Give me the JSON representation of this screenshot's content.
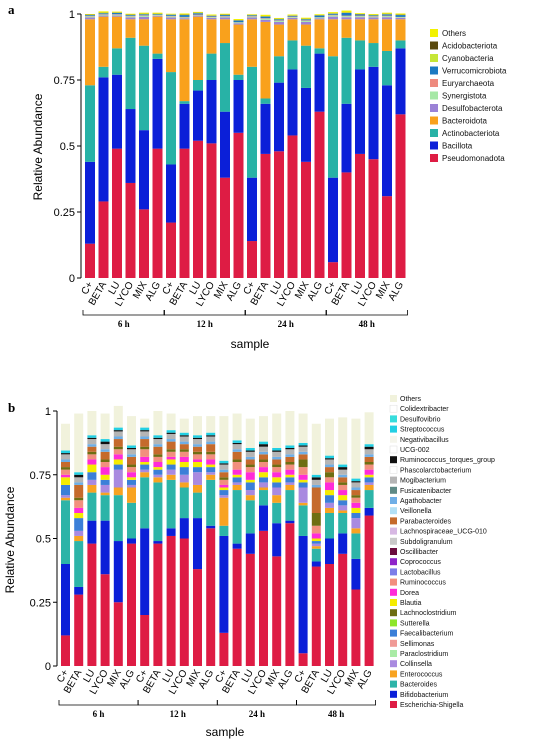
{
  "colors": {
    "Others": "#f2f200",
    "Acidobacteriota": "#5a4a0e",
    "Cyanobacteria": "#c6e636",
    "Verrucomicrobiota": "#1b79c2",
    "Euryarchaeota": "#ee8a7e",
    "Synergistota": "#a6e8a6",
    "Desulfobacterota": "#9b82d6",
    "Bacteroidota": "#f9a11c",
    "Actinobacteriota": "#28b2a6",
    "Bacillota": "#0b1fd8",
    "Pseudomonadota": "#de1c44"
  },
  "chart_data": [
    {
      "type": "bar",
      "panel": "a",
      "xlabel": "sample",
      "ylabel": "Relative Abundance",
      "ylim": [
        0,
        1
      ],
      "yticks": [
        "0",
        "0.25",
        "0.5",
        "0.75",
        "1"
      ],
      "groups": [
        "6 h",
        "12 h",
        "24 h",
        "48 h"
      ],
      "categories": [
        "C+",
        "BETA",
        "LU",
        "LYCO",
        "MIX",
        "ALG",
        "C+",
        "BETA",
        "LU",
        "LYCO",
        "MIX",
        "ALG",
        "C+",
        "BETA",
        "LU",
        "LYCO",
        "MIX",
        "ALG",
        "C+",
        "BETA",
        "LU",
        "LYCO",
        "MIX",
        "ALG"
      ],
      "legend": [
        "Others",
        "Acidobacteriota",
        "Cyanobacteria",
        "Verrucomicrobiota",
        "Euryarchaeota",
        "Synergistota",
        "Desulfobacterota",
        "Bacteroidota",
        "Actinobacteriota",
        "Bacillota",
        "Pseudomonadota"
      ],
      "series": [
        {
          "name": "Pseudomonadota",
          "values": [
            0.13,
            0.29,
            0.49,
            0.36,
            0.26,
            0.49,
            0.21,
            0.49,
            0.52,
            0.51,
            0.38,
            0.55,
            0.14,
            0.47,
            0.48,
            0.54,
            0.44,
            0.63,
            0.06,
            0.4,
            0.47,
            0.45,
            0.31,
            0.62
          ]
        },
        {
          "name": "Bacillota",
          "values": [
            0.31,
            0.47,
            0.28,
            0.28,
            0.3,
            0.34,
            0.22,
            0.17,
            0.19,
            0.24,
            0.25,
            0.2,
            0.24,
            0.19,
            0.26,
            0.25,
            0.28,
            0.22,
            0.32,
            0.26,
            0.32,
            0.35,
            0.42,
            0.25
          ]
        },
        {
          "name": "Actinobacteriota",
          "values": [
            0.29,
            0.04,
            0.1,
            0.27,
            0.32,
            0.02,
            0.35,
            0.01,
            0.04,
            0.1,
            0.26,
            0.02,
            0.42,
            0.02,
            0.1,
            0.11,
            0.16,
            0.02,
            0.46,
            0.25,
            0.11,
            0.09,
            0.13,
            0.03
          ]
        },
        {
          "name": "Bacteroidota",
          "values": [
            0.25,
            0.19,
            0.12,
            0.07,
            0.1,
            0.14,
            0.2,
            0.31,
            0.24,
            0.13,
            0.09,
            0.19,
            0.18,
            0.29,
            0.12,
            0.08,
            0.08,
            0.11,
            0.14,
            0.07,
            0.08,
            0.09,
            0.12,
            0.08
          ]
        },
        {
          "name": "Desulfobacterota",
          "values": [
            0.007,
            0.004,
            0.004,
            0.007,
            0.009,
            0.003,
            0.007,
            0.004,
            0.004,
            0.005,
            0.007,
            0.005,
            0.007,
            0.008,
            0.01,
            0.005,
            0.01,
            0.004,
            0.01,
            0.008,
            0.008,
            0.007,
            0.008,
            0.005
          ]
        },
        {
          "name": "Synergistota",
          "values": [
            0.004,
            0.003,
            0.003,
            0.004,
            0.004,
            0.002,
            0.004,
            0.003,
            0.002,
            0.003,
            0.003,
            0.003,
            0.003,
            0.004,
            0.004,
            0.003,
            0.004,
            0.003,
            0.005,
            0.004,
            0.004,
            0.003,
            0.004,
            0.003
          ]
        },
        {
          "name": "Euryarchaeota",
          "values": [
            0.002,
            0.002,
            0.002,
            0.002,
            0.002,
            0.001,
            0.002,
            0.002,
            0.002,
            0.002,
            0.002,
            0.001,
            0.002,
            0.002,
            0.002,
            0.002,
            0.002,
            0.001,
            0.002,
            0.002,
            0.002,
            0.002,
            0.002,
            0.001
          ]
        },
        {
          "name": "Verrucomicrobiota",
          "values": [
            0.003,
            0.004,
            0.005,
            0.003,
            0.004,
            0.003,
            0.004,
            0.007,
            0.005,
            0.003,
            0.004,
            0.006,
            0.003,
            0.006,
            0.004,
            0.003,
            0.004,
            0.006,
            0.004,
            0.01,
            0.004,
            0.003,
            0.005,
            0.007
          ]
        },
        {
          "name": "Cyanobacteria",
          "values": [
            0.001,
            0.001,
            0.001,
            0.001,
            0.001,
            0.001,
            0.001,
            0.001,
            0.001,
            0.001,
            0.001,
            0.001,
            0.001,
            0.001,
            0.001,
            0.001,
            0.001,
            0.001,
            0.001,
            0.001,
            0.001,
            0.001,
            0.001,
            0.001
          ]
        },
        {
          "name": "Acidobacteriota",
          "values": [
            0.001,
            0.001,
            0.001,
            0.001,
            0.001,
            0.001,
            0.001,
            0.001,
            0.001,
            0.001,
            0.001,
            0.001,
            0.001,
            0.001,
            0.001,
            0.001,
            0.001,
            0.001,
            0.001,
            0.001,
            0.001,
            0.001,
            0.001,
            0.001
          ]
        },
        {
          "name": "Others",
          "values": [
            0.002,
            0.005,
            0.003,
            0.003,
            0.004,
            0.004,
            0.002,
            0.004,
            0.003,
            0.003,
            0.003,
            0.004,
            0.002,
            0.005,
            0.003,
            0.003,
            0.004,
            0.003,
            0.004,
            0.007,
            0.003,
            0.003,
            0.004,
            0.004
          ]
        }
      ]
    },
    {
      "type": "bar",
      "panel": "b",
      "xlabel": "sample",
      "ylabel": "Relative Abundance",
      "ylim": [
        0,
        1
      ],
      "yticks": [
        "0",
        "0.25",
        "0.5",
        "0.75",
        "1"
      ],
      "groups": [
        "6 h",
        "12 h",
        "24 h",
        "48 h"
      ],
      "categories": [
        "C+",
        "BETA",
        "LU",
        "LYCO",
        "MIX",
        "ALG",
        "C+",
        "BETA",
        "LU",
        "LYCO",
        "MIX",
        "ALG",
        "C+",
        "BETA",
        "LU",
        "LYCO",
        "MIX",
        "ALG",
        "C+",
        "BETA",
        "LU",
        "LYCO",
        "MIX",
        "ALG"
      ],
      "legend": [
        {
          "name": "Others",
          "color": "#f1f2dc"
        },
        {
          "name": "Colidextribacter",
          "color": "#ffffff"
        },
        {
          "name": "Desulfovibrio",
          "color": "#37dcdc"
        },
        {
          "name": "Streptococcus",
          "color": "#22cfe3"
        },
        {
          "name": "Negativibacillus",
          "color": "#f5f5ec"
        },
        {
          "name": "UCG-002",
          "color": "#ffffff"
        },
        {
          "name": "Ruminococcus_torques_group",
          "color": "#111111"
        },
        {
          "name": "Phascolarctobacterium",
          "color": "#ffffff"
        },
        {
          "name": "Mogibacterium",
          "color": "#b5b5b5"
        },
        {
          "name": "Fusicatenibacter",
          "color": "#5e8a86"
        },
        {
          "name": "Agathobacter",
          "color": "#6eaee6"
        },
        {
          "name": "Veillonella",
          "color": "#b3e0f5"
        },
        {
          "name": "Parabacteroides",
          "color": "#c56a2c"
        },
        {
          "name": "Lachnospiraceae_UCG-010",
          "color": "#d7b8e3"
        },
        {
          "name": "Subdoligranulum",
          "color": "#c9c9c9"
        },
        {
          "name": "Oscillibacter",
          "color": "#6b0b3e"
        },
        {
          "name": "Coprococcus",
          "color": "#8e24c9"
        },
        {
          "name": "Lactobacillus",
          "color": "#7d7de8"
        },
        {
          "name": "Ruminococcus",
          "color": "#f28f7e"
        },
        {
          "name": "Dorea",
          "color": "#ff2bd8"
        },
        {
          "name": "Blautia",
          "color": "#f5ec00"
        },
        {
          "name": "Lachnoclostridium",
          "color": "#6e6e12"
        },
        {
          "name": "Sutterella",
          "color": "#8ee62a"
        },
        {
          "name": "Faecalibacterium",
          "color": "#3b7fd8"
        },
        {
          "name": "Sellimonas",
          "color": "#f09a96"
        },
        {
          "name": "Paraclostridium",
          "color": "#a9eba5"
        },
        {
          "name": "Collinsella",
          "color": "#a98ae0"
        },
        {
          "name": "Enterococcus",
          "color": "#f8a321"
        },
        {
          "name": "Bacteroides",
          "color": "#2cb4a8"
        },
        {
          "name": "Bifidobacterium",
          "color": "#0b1fd8"
        },
        {
          "name": "Escherichia-Shigella",
          "color": "#de1c44"
        }
      ],
      "series": [
        {
          "name": "Escherichia-Shigella",
          "values": [
            0.12,
            0.28,
            0.48,
            0.36,
            0.25,
            0.48,
            0.2,
            0.48,
            0.51,
            0.5,
            0.38,
            0.54,
            0.13,
            0.46,
            0.44,
            0.53,
            0.43,
            0.56,
            0.05,
            0.39,
            0.4,
            0.44,
            0.3,
            0.59
          ]
        },
        {
          "name": "Bifidobacterium",
          "values": [
            0.28,
            0.03,
            0.09,
            0.21,
            0.24,
            0.02,
            0.34,
            0.01,
            0.03,
            0.08,
            0.2,
            0.01,
            0.38,
            0.02,
            0.08,
            0.1,
            0.13,
            0.01,
            0.46,
            0.02,
            0.1,
            0.08,
            0.12,
            0.03
          ]
        },
        {
          "name": "Bacteroides",
          "values": [
            0.25,
            0.18,
            0.11,
            0.1,
            0.18,
            0.14,
            0.2,
            0.23,
            0.19,
            0.12,
            0.1,
            0.18,
            0.04,
            0.21,
            0.13,
            0.06,
            0.08,
            0.12,
            0.12,
            0.05,
            0.1,
            0.08,
            0.1,
            0.07
          ]
        },
        {
          "name": "Enterococcus",
          "values": [
            0.01,
            0.02,
            0.03,
            0.01,
            0.03,
            0.06,
            0.02,
            0.02,
            0.02,
            0.02,
            0.03,
            0.02,
            0.11,
            0.02,
            0.02,
            0.01,
            0.03,
            0.02,
            0.01,
            0.01,
            0.02,
            0.01,
            0.02,
            0.02
          ]
        },
        {
          "name": "Collinsella",
          "values": [
            0.01,
            0.02,
            0.02,
            0.03,
            0.07,
            0.01,
            0.01,
            0.01,
            0.02,
            0.03,
            0.05,
            0.01,
            0.01,
            0.01,
            0.02,
            0.02,
            0.03,
            0.01,
            0.06,
            0.01,
            0.02,
            0.02,
            0.04,
            0.01
          ]
        },
        {
          "name": "Faecalibacterium",
          "values": [
            0.04,
            0.05,
            0.03,
            0.02,
            0.02,
            0.02,
            0.02,
            0.02,
            0.02,
            0.03,
            0.02,
            0.02,
            0.02,
            0.02,
            0.03,
            0.02,
            0.02,
            0.02,
            0.02,
            0.01,
            0.03,
            0.02,
            0.02,
            0.02
          ]
        },
        {
          "name": "Blautia",
          "values": [
            0.03,
            0.02,
            0.03,
            0.02,
            0.02,
            0.01,
            0.01,
            0.01,
            0.02,
            0.02,
            0.02,
            0.01,
            0.01,
            0.01,
            0.01,
            0.02,
            0.02,
            0.01,
            0.01,
            0.01,
            0.02,
            0.02,
            0.02,
            0.01
          ]
        },
        {
          "name": "Dorea",
          "values": [
            0.01,
            0.02,
            0.02,
            0.03,
            0.02,
            0.02,
            0.02,
            0.02,
            0.01,
            0.02,
            0.01,
            0.02,
            0.01,
            0.02,
            0.03,
            0.02,
            0.02,
            0.02,
            0.02,
            0.02,
            0.03,
            0.02,
            0.02,
            0.02
          ]
        },
        {
          "name": "Ruminococcus",
          "values": [
            0.02,
            0.03,
            0.02,
            0.02,
            0.02,
            0.02,
            0.03,
            0.02,
            0.02,
            0.02,
            0.02,
            0.02,
            0.02,
            0.03,
            0.02,
            0.02,
            0.02,
            0.02,
            0.03,
            0.03,
            0.02,
            0.02,
            0.02,
            0.02
          ]
        },
        {
          "name": "Lachnoclostridium",
          "values": [
            0.01,
            0.01,
            0.01,
            0.01,
            0.01,
            0.01,
            0.01,
            0.01,
            0.01,
            0.01,
            0.01,
            0.01,
            0.01,
            0.01,
            0.01,
            0.01,
            0.01,
            0.01,
            0.03,
            0.05,
            0.02,
            0.01,
            0.01,
            0.01
          ]
        },
        {
          "name": "Parabacteroides",
          "values": [
            0.02,
            0.05,
            0.02,
            0.03,
            0.03,
            0.03,
            0.03,
            0.03,
            0.03,
            0.02,
            0.02,
            0.03,
            0.02,
            0.03,
            0.02,
            0.02,
            0.02,
            0.02,
            0.02,
            0.1,
            0.02,
            0.02,
            0.02,
            0.02
          ]
        },
        {
          "name": "Agathobacter",
          "values": [
            0.01,
            0.01,
            0.01,
            0.01,
            0.01,
            0.01,
            0.01,
            0.01,
            0.01,
            0.01,
            0.01,
            0.01,
            0.01,
            0.01,
            0.01,
            0.01,
            0.01,
            0.01,
            0.01,
            0.01,
            0.01,
            0.01,
            0.01,
            0.01
          ]
        },
        {
          "name": "Mogibacterium",
          "values": [
            0.02,
            0.02,
            0.02,
            0.02,
            0.02,
            0.02,
            0.02,
            0.02,
            0.02,
            0.02,
            0.02,
            0.02,
            0.02,
            0.02,
            0.02,
            0.02,
            0.02,
            0.02,
            0.02,
            0.02,
            0.02,
            0.02,
            0.02,
            0.02
          ]
        },
        {
          "name": "Ruminococcus_torques_group",
          "values": [
            0.005,
            0.01,
            0.005,
            0.01,
            0.005,
            0.005,
            0.005,
            0.005,
            0.005,
            0.005,
            0.005,
            0.005,
            0.005,
            0.005,
            0.005,
            0.01,
            0.005,
            0.005,
            0.005,
            0.01,
            0.005,
            0.01,
            0.005,
            0.01
          ]
        },
        {
          "name": "Streptococcus",
          "values": [
            0.01,
            0.01,
            0.01,
            0.01,
            0.01,
            0.01,
            0.01,
            0.01,
            0.01,
            0.01,
            0.01,
            0.01,
            0.01,
            0.01,
            0.01,
            0.01,
            0.01,
            0.01,
            0.01,
            0.01,
            0.01,
            0.01,
            0.01,
            0.01
          ]
        },
        {
          "name": "Others",
          "values": [
            0.105,
            0.23,
            0.095,
            0.1,
            0.085,
            0.115,
            0.035,
            0.095,
            0.065,
            0.055,
            0.075,
            0.065,
            0.175,
            0.105,
            0.115,
            0.1,
            0.135,
            0.135,
            0.115,
            0.2,
            0.145,
            0.185,
            0.235,
            0.125
          ]
        }
      ]
    }
  ]
}
